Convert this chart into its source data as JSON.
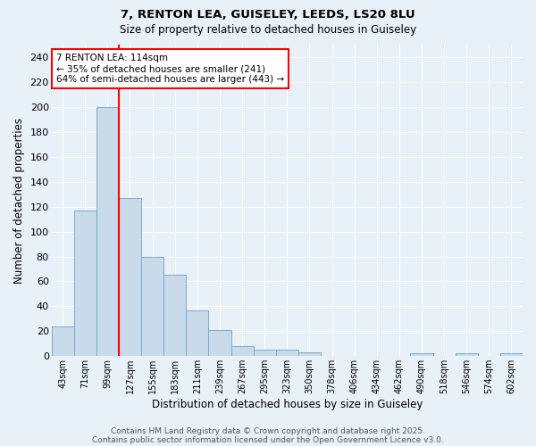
{
  "title1": "7, RENTON LEA, GUISELEY, LEEDS, LS20 8LU",
  "title2": "Size of property relative to detached houses in Guiseley",
  "xlabel": "Distribution of detached houses by size in Guiseley",
  "ylabel": "Number of detached properties",
  "categories": [
    "43sqm",
    "71sqm",
    "99sqm",
    "127sqm",
    "155sqm",
    "183sqm",
    "211sqm",
    "239sqm",
    "267sqm",
    "295sqm",
    "323sqm",
    "350sqm",
    "378sqm",
    "406sqm",
    "434sqm",
    "462sqm",
    "490sqm",
    "518sqm",
    "546sqm",
    "574sqm",
    "602sqm"
  ],
  "values": [
    24,
    117,
    200,
    127,
    80,
    65,
    37,
    21,
    8,
    5,
    5,
    3,
    0,
    0,
    0,
    0,
    2,
    0,
    2,
    0,
    2
  ],
  "bar_color": "#c9daea",
  "bar_edge_color": "#7fa8c8",
  "background_color": "#e8f0f8",
  "grid_color": "#ffffff",
  "vline_x": 2.5,
  "vline_color": "red",
  "annotation_title": "7 RENTON LEA: 114sqm",
  "annotation_line1": "← 35% of detached houses are smaller (241)",
  "annotation_line2": "64% of semi-detached houses are larger (443) →",
  "ylim": [
    0,
    250
  ],
  "yticks": [
    0,
    20,
    40,
    60,
    80,
    100,
    120,
    140,
    160,
    180,
    200,
    220,
    240
  ],
  "footer1": "Contains HM Land Registry data © Crown copyright and database right 2025.",
  "footer2": "Contains public sector information licensed under the Open Government Licence v3.0."
}
